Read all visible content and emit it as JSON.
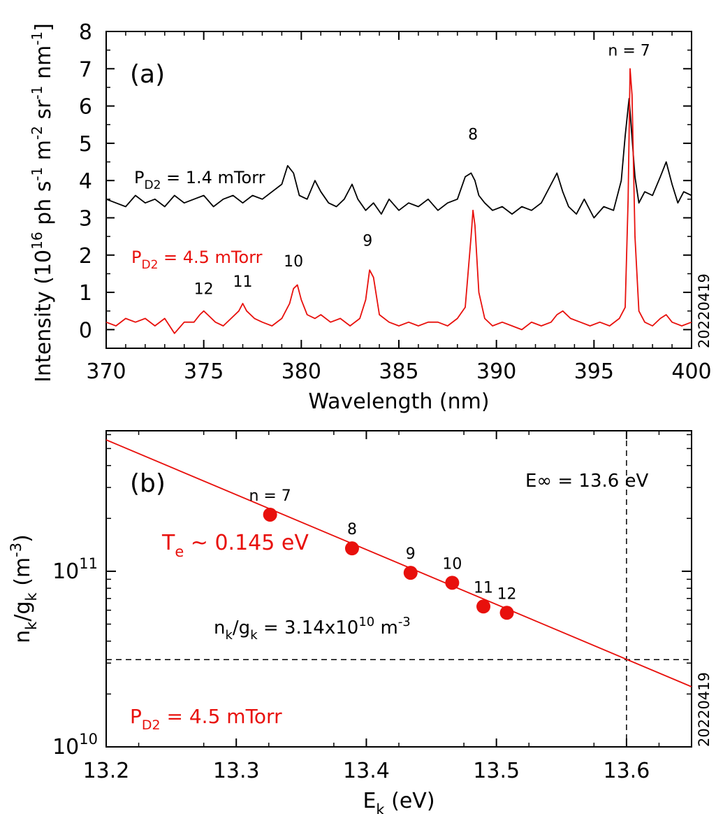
{
  "colors": {
    "black": "#000000",
    "red": "#e8100c"
  },
  "chart_data": [
    {
      "type": "line",
      "panel_label": "(a)",
      "xlabel": "Wavelength (nm)",
      "ylabel_main": "Intensity (10",
      "ylabel_sup1": "16",
      "ylabel_mid": " ph s",
      "ylabel_sup2": "-1",
      "ylabel_mid2": " m",
      "ylabel_sup3": "-2",
      "ylabel_mid3": " sr",
      "ylabel_sup4": "-1",
      "ylabel_mid4": " nm",
      "ylabel_sup5": "-1",
      "ylabel_end": "]",
      "xlim": [
        370,
        400
      ],
      "ylim": [
        -0.5,
        8
      ],
      "xticks": [
        "370",
        "375",
        "380",
        "385",
        "390",
        "395",
        "400"
      ],
      "yticks": [
        "0",
        "1",
        "2",
        "3",
        "4",
        "5",
        "6",
        "7",
        "8"
      ],
      "stamp": "20220419",
      "series": [
        {
          "label_main": "P",
          "label_sub": "D2",
          "label_rest": " = 1.4 mTorr",
          "color": "#000000",
          "x": [
            370,
            370.5,
            371,
            371.5,
            372,
            372.5,
            373,
            373.5,
            374,
            374.5,
            375,
            375.5,
            376,
            376.5,
            377,
            377.5,
            378,
            378.5,
            379,
            379.3,
            379.6,
            379.9,
            380.3,
            380.7,
            381,
            381.4,
            381.8,
            382.2,
            382.6,
            382.9,
            383.3,
            383.7,
            384.1,
            384.5,
            385,
            385.5,
            386,
            386.5,
            387,
            387.5,
            388,
            388.4,
            388.7,
            388.9,
            389.1,
            389.4,
            389.8,
            390.3,
            390.8,
            391.3,
            391.8,
            392.3,
            392.8,
            393.1,
            393.4,
            393.7,
            394.1,
            394.5,
            395,
            395.5,
            396,
            396.4,
            396.6,
            396.8,
            396.9,
            397.1,
            397.3,
            397.6,
            398,
            398.4,
            398.7,
            399,
            399.3,
            399.6,
            400
          ],
          "y": [
            3.5,
            3.4,
            3.3,
            3.6,
            3.4,
            3.5,
            3.3,
            3.6,
            3.4,
            3.5,
            3.6,
            3.3,
            3.5,
            3.6,
            3.4,
            3.6,
            3.5,
            3.7,
            3.9,
            4.4,
            4.2,
            3.6,
            3.5,
            4.0,
            3.7,
            3.4,
            3.3,
            3.5,
            3.9,
            3.5,
            3.2,
            3.4,
            3.1,
            3.5,
            3.2,
            3.4,
            3.3,
            3.5,
            3.2,
            3.4,
            3.5,
            4.1,
            4.2,
            4.0,
            3.6,
            3.4,
            3.2,
            3.3,
            3.1,
            3.3,
            3.2,
            3.4,
            3.9,
            4.2,
            3.7,
            3.3,
            3.1,
            3.5,
            3.0,
            3.3,
            3.2,
            4.0,
            5.2,
            6.2,
            5.5,
            4.1,
            3.4,
            3.7,
            3.6,
            4.1,
            4.5,
            3.9,
            3.4,
            3.7,
            3.6
          ]
        },
        {
          "label_main": "P",
          "label_sub": "D2",
          "label_rest": " = 4.5 mTorr",
          "color": "#e8100c",
          "x": [
            370,
            370.5,
            371,
            371.5,
            372,
            372.5,
            373,
            373.5,
            374,
            374.5,
            374.8,
            375,
            375.2,
            375.6,
            376,
            376.4,
            376.8,
            377,
            377.2,
            377.6,
            378,
            378.5,
            379,
            379.4,
            379.6,
            379.8,
            380,
            380.3,
            380.7,
            381,
            381.5,
            382,
            382.5,
            383,
            383.3,
            383.5,
            383.7,
            384,
            384.5,
            385,
            385.5,
            386,
            386.5,
            387,
            387.5,
            388,
            388.4,
            388.7,
            388.8,
            388.9,
            389.1,
            389.4,
            389.8,
            390.3,
            390.8,
            391.3,
            391.8,
            392.3,
            392.8,
            393.1,
            393.4,
            393.8,
            394.3,
            394.8,
            395.3,
            395.8,
            396.3,
            396.6,
            396.75,
            396.85,
            396.95,
            397.1,
            397.3,
            397.6,
            398,
            398.4,
            398.7,
            399,
            399.5,
            400
          ],
          "y": [
            0.2,
            0.1,
            0.3,
            0.2,
            0.3,
            0.1,
            0.3,
            -0.1,
            0.2,
            0.2,
            0.4,
            0.5,
            0.4,
            0.2,
            0.1,
            0.3,
            0.5,
            0.7,
            0.5,
            0.3,
            0.2,
            0.1,
            0.3,
            0.7,
            1.1,
            1.2,
            0.8,
            0.4,
            0.3,
            0.4,
            0.2,
            0.3,
            0.1,
            0.3,
            0.8,
            1.6,
            1.4,
            0.4,
            0.2,
            0.1,
            0.2,
            0.1,
            0.2,
            0.2,
            0.1,
            0.3,
            0.6,
            2.5,
            3.2,
            2.8,
            1.0,
            0.3,
            0.1,
            0.2,
            0.1,
            0.0,
            0.2,
            0.1,
            0.2,
            0.4,
            0.5,
            0.3,
            0.2,
            0.1,
            0.2,
            0.1,
            0.3,
            0.6,
            3.5,
            7.0,
            6.3,
            2.5,
            0.5,
            0.2,
            0.1,
            0.3,
            0.4,
            0.2,
            0.1,
            0.2
          ]
        }
      ],
      "annotations": [
        {
          "text": "n = 7",
          "x": 396.8,
          "y": 7.35,
          "color": "black"
        },
        {
          "text": "8",
          "x": 388.8,
          "y": 5.1,
          "color": "black"
        },
        {
          "text": "9",
          "x": 383.4,
          "y": 2.25,
          "color": "black"
        },
        {
          "text": "10",
          "x": 379.6,
          "y": 1.7,
          "color": "black"
        },
        {
          "text": "11",
          "x": 377.0,
          "y": 1.15,
          "color": "black"
        },
        {
          "text": "12",
          "x": 375.0,
          "y": 0.95,
          "color": "black"
        }
      ]
    },
    {
      "type": "scatter",
      "panel_label": "(b)",
      "xlabel_main": "E",
      "xlabel_sub": "k",
      "xlabel_rest": " (eV)",
      "ylabel": "n_k/g_k (m^-3)",
      "xlim": [
        13.2,
        13.65
      ],
      "ylim_log10": [
        10,
        11.8
      ],
      "xticks": [
        "13.2",
        "13.3",
        "13.4",
        "13.5",
        "13.6"
      ],
      "yticks": [
        {
          "base": "10",
          "exp": "10"
        },
        {
          "base": "10",
          "exp": "11"
        }
      ],
      "stamp": "20220419",
      "points": {
        "x": [
          13.326,
          13.389,
          13.434,
          13.466,
          13.49,
          13.508
        ],
        "y": [
          210000000000.0,
          135000000000.0,
          98000000000.0,
          86000000000.0,
          63000000000.0,
          58000000000.0
        ],
        "labels": [
          "n = 7",
          "8",
          "9",
          "10",
          "11",
          "12"
        ],
        "color": "#e8100c"
      },
      "fit_line": {
        "x": [
          13.2,
          13.65
        ],
        "y": [
          560000000000.0,
          22000000000.0
        ],
        "color": "#e8100c"
      },
      "hline": {
        "y": 31400000000.0
      },
      "vline": {
        "x": 13.6
      },
      "texts": {
        "einf": "E∞ = 13.6 eV",
        "te_main": "T",
        "te_sub": "e",
        "te_rest": " ~ 0.145 eV",
        "nk_main": "n",
        "nk_sub1": "k",
        "nk_mid": "/g",
        "nk_sub2": "k",
        "nk_rest": " = 3.14x10",
        "nk_sup1": "10",
        "nk_unit": " m",
        "nk_sup2": "-3",
        "pd2_main": "P",
        "pd2_sub": "D2",
        "pd2_rest": " = 4.5 mTorr",
        "ylab_n": "n",
        "ylab_k1": "k",
        "ylab_g": "/g",
        "ylab_k2": "k",
        "ylab_rest": " (m",
        "ylab_sup": "-3",
        "ylab_end": ")"
      }
    }
  ]
}
